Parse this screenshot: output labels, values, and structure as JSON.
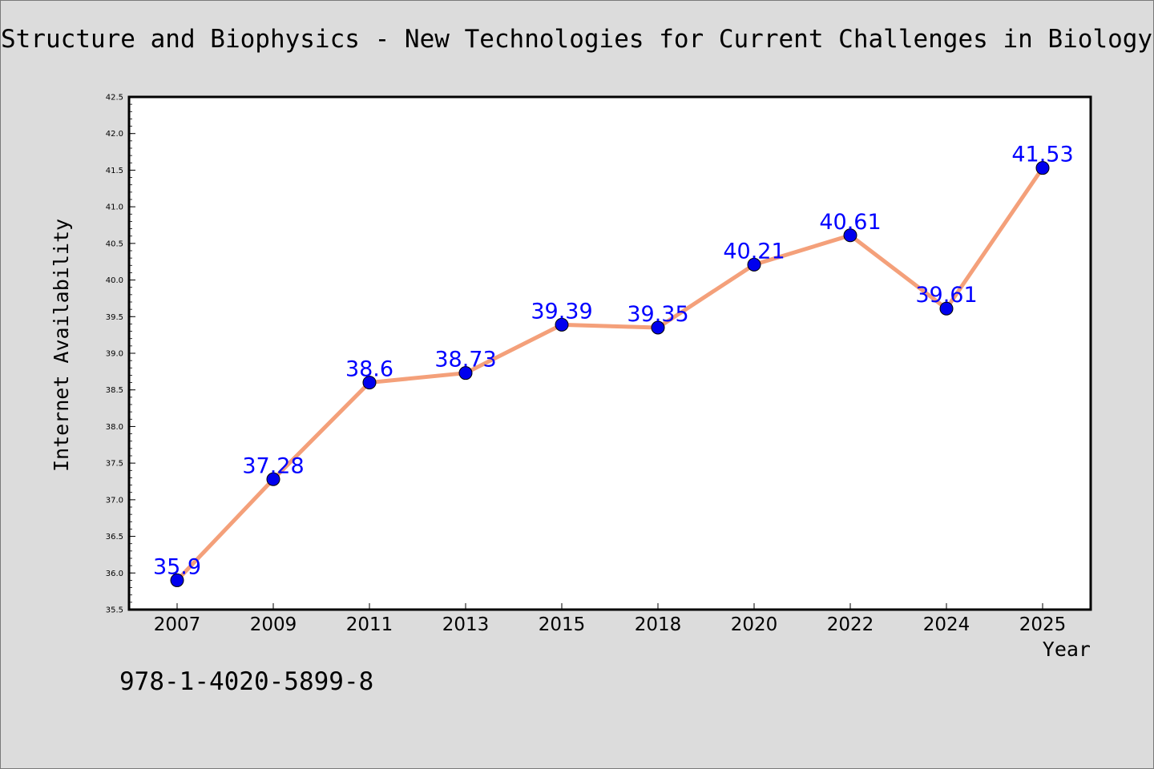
{
  "title": "Structure and Biophysics - New Technologies for Current Challenges in Biology and Beyond",
  "footer_text": "978-1-4020-5899-8",
  "colors": {
    "background": "#dcdcdc",
    "plot_background": "#ffffff",
    "line": "#f4a07a",
    "marker": "#0000ee",
    "label": "#0000ff"
  },
  "chart_data": {
    "type": "line",
    "title": "Structure and Biophysics - New Technologies for Current Challenges in Biology and Beyond",
    "xlabel": "Year",
    "ylabel": "Internet Availability",
    "categories": [
      "2007",
      "2009",
      "2011",
      "2013",
      "2015",
      "2018",
      "2020",
      "2022",
      "2024",
      "2025"
    ],
    "series": [
      {
        "values": [
          35.9,
          37.28,
          38.6,
          38.73,
          39.39,
          39.35,
          40.21,
          40.61,
          39.61,
          41.53
        ],
        "data_labels": [
          "35.9",
          "37.28",
          "38.6",
          "38.73",
          "39.39",
          "39.35",
          "40.21",
          "40.61",
          "39.61",
          "41.53"
        ]
      }
    ],
    "ylim": [
      35.5,
      42.5
    ],
    "yticks": [
      "35.5",
      "36.0",
      "36.5",
      "37.0",
      "37.5",
      "38.0",
      "38.5",
      "39.0",
      "39.5",
      "40.0",
      "40.5",
      "41.0",
      "41.5",
      "42.0",
      "42.5"
    ],
    "grid": false,
    "legend": "none"
  }
}
